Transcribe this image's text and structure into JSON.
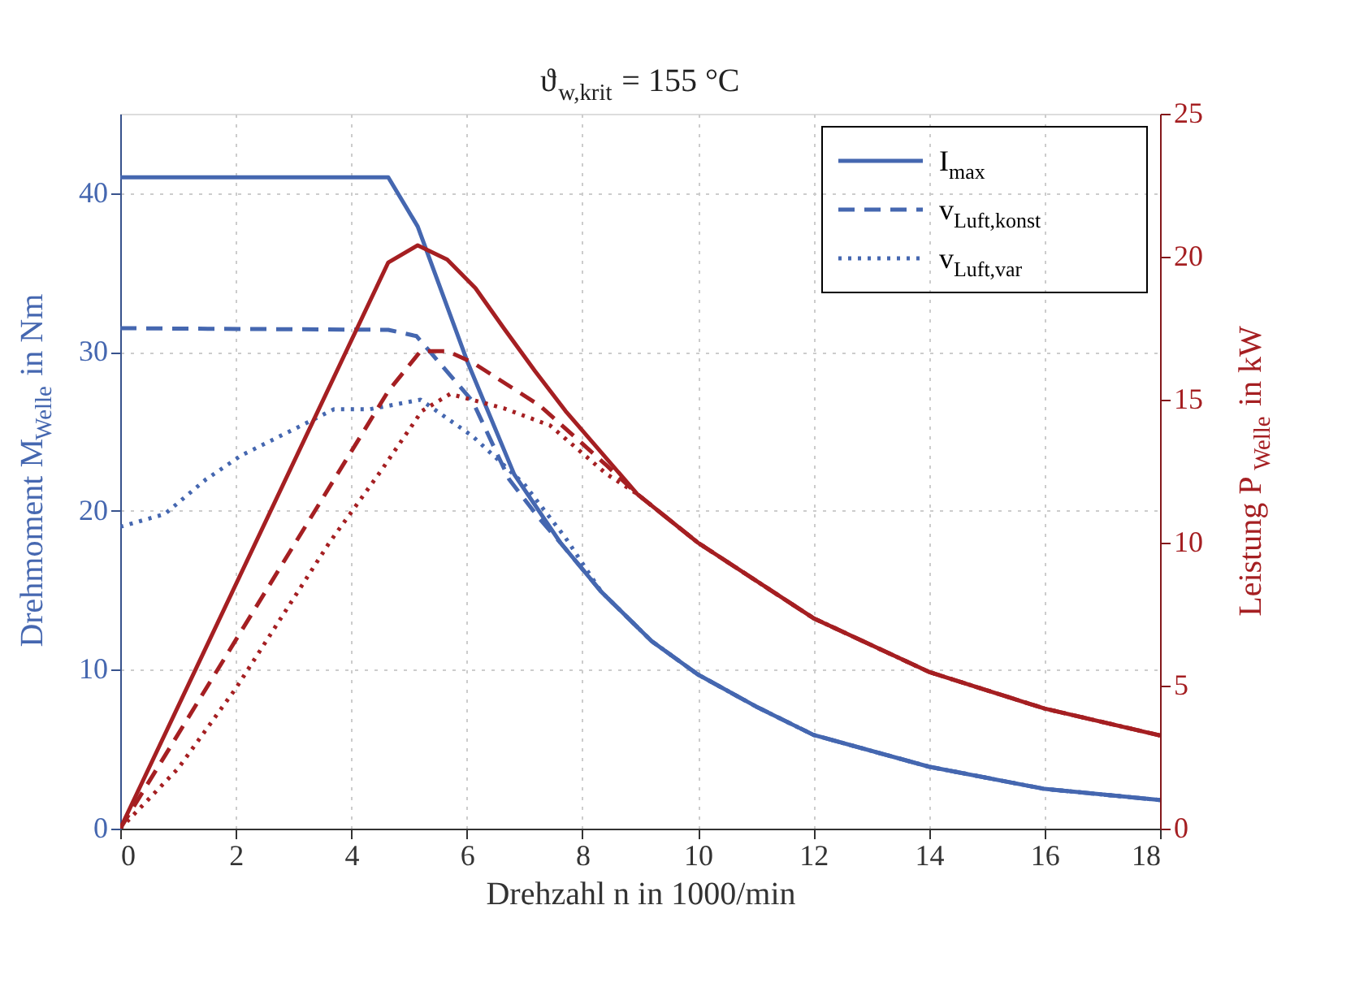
{
  "chart_data": {
    "type": "line",
    "title": "ϑ$_{w,krit}$ = 155 °C",
    "xlabel": "Drehzahl n in 1000/min",
    "ylabel": "Drehmoment M$_{Welle}$ in Nm",
    "y2label": "Leistung P$_{Welle}$ in kW",
    "xlim": [
      0,
      18
    ],
    "xticks": [
      0,
      2,
      4,
      6,
      8,
      10,
      12,
      14,
      16,
      18
    ],
    "ylim": [
      0,
      45
    ],
    "yticks": [
      0,
      10,
      20,
      30,
      40
    ],
    "y2lim": [
      0,
      25
    ],
    "y2ticks": [
      0,
      5,
      10,
      15,
      20,
      25
    ],
    "grid": true,
    "legend": "top right",
    "marker": "none",
    "series": [
      {
        "name": "I$_{max}$",
        "color": "#4567b0",
        "line_style": "solid",
        "x": [
          0,
          4.64,
          5.15,
          6.02,
          6.82,
          7.62,
          8.33,
          9.2,
          10,
          11,
          12,
          14,
          16,
          18
        ],
        "values": [
          41.0,
          41.0,
          37.9,
          29.3,
          22.3,
          18.0,
          14.9,
          11.8,
          9.7,
          7.7,
          5.9,
          3.9,
          2.5,
          1.8
        ]
      },
      {
        "name": "v$_{Luft,konst}$",
        "color": "#4567b0",
        "line_style": "dashed",
        "x": [
          0,
          4.64,
          5.13,
          6.1,
          6.73,
          7.26,
          7.62,
          8.33,
          9.2,
          10,
          11,
          12,
          14,
          16,
          18
        ],
        "values": [
          31.5,
          31.4,
          31.0,
          26.9,
          22.0,
          19.5,
          18.0,
          14.9,
          11.8,
          9.7,
          7.7,
          5.9,
          3.9,
          2.5,
          1.8
        ]
      },
      {
        "name": "v$_{Luft,var}$",
        "color": "#4567b0",
        "line_style": "dotted",
        "x": [
          0,
          0.77,
          1.49,
          2.1,
          3.26,
          3.7,
          4.32,
          5.2,
          6.1,
          6.99,
          7.71,
          8.33,
          9.2,
          10,
          11,
          12,
          14,
          16,
          18
        ],
        "values": [
          19.0,
          19.8,
          22.0,
          23.5,
          25.6,
          26.4,
          26.4,
          27.0,
          24.7,
          21.7,
          18.3,
          14.9,
          11.8,
          9.7,
          7.7,
          5.9,
          3.9,
          2.5,
          1.8
        ]
      },
      {
        "color": "#a51f22",
        "line_style": "solid",
        "axis": "y2",
        "x": [
          0,
          4.64,
          5.15,
          5.66,
          6.15,
          6.64,
          7.18,
          7.71,
          8.95,
          10,
          12,
          14,
          16,
          18
        ],
        "values": [
          0,
          19.8,
          20.4,
          19.9,
          18.9,
          17.5,
          16.0,
          14.6,
          11.7,
          10.0,
          7.36,
          5.48,
          4.2,
          3.26
        ]
      },
      {
        "color": "#a51f22",
        "line_style": "dashed",
        "axis": "y2",
        "x": [
          0,
          4.64,
          5.2,
          5.66,
          6.1,
          7.26,
          8.42,
          8.95,
          10,
          12,
          14,
          16,
          18
        ],
        "values": [
          0,
          15.3,
          16.7,
          16.7,
          16.3,
          14.8,
          12.7,
          11.7,
          10.0,
          7.36,
          5.48,
          4.2,
          3.26
        ]
      },
      {
        "color": "#a51f22",
        "line_style": "dotted",
        "axis": "y2",
        "x": [
          0,
          1,
          2,
          3.62,
          4.51,
          5.22,
          5.71,
          6.64,
          7.44,
          8.42,
          8.95,
          10,
          12,
          14,
          16,
          18
        ],
        "values": [
          0,
          2.1,
          4.9,
          10.0,
          12.5,
          14.6,
          15.2,
          14.7,
          14.1,
          12.4,
          11.7,
          10.0,
          7.36,
          5.48,
          4.2,
          3.26
        ]
      }
    ]
  }
}
